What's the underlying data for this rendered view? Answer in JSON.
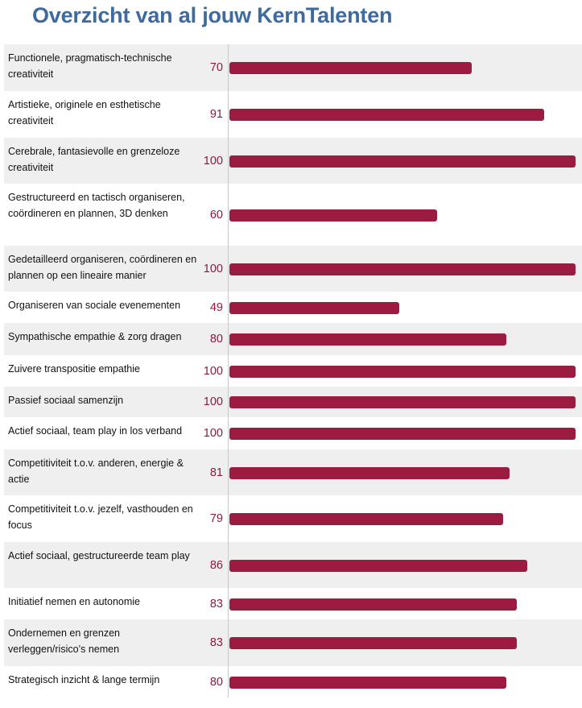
{
  "title": "Overzicht van al jouw KernTalenten",
  "colors": {
    "title": "#3f6a9e",
    "bar": "#9b1c40",
    "value": "#8b1a3e",
    "row_shade": "#efefef"
  },
  "chart_data": {
    "type": "bar",
    "orientation": "horizontal",
    "title": "Overzicht van al jouw KernTalenten",
    "xlabel": "",
    "ylabel": "",
    "xlim": [
      0,
      100
    ],
    "grid": false,
    "categories": [
      "Functionele, pragmatisch-technische creativiteit",
      "Artistieke, originele en esthetische creativiteit",
      "Cerebrale, fantasievolle en grenzeloze creativiteit",
      "Gestructureerd en tactisch organiseren, coördineren en plannen, 3D denken",
      "Gedetailleerd organiseren, coördineren en plannen op een lineaire manier",
      "Organiseren van sociale evenementen",
      "Sympathische empathie & zorg dragen",
      "Zuivere transpositie empathie",
      "Passief sociaal samenzijn",
      "Actief sociaal, team play in los verband",
      "Competitiviteit t.o.v. anderen, energie & actie",
      "Competitiviteit t.o.v. jezelf, vasthouden en focus",
      "Actief sociaal, gestructureerde team play",
      "Initiatief nemen en autonomie",
      "Ondernemen en grenzen verleggen/risico’s nemen",
      "Strategisch inzicht & lange termijn"
    ],
    "values": [
      70,
      91,
      100,
      60,
      100,
      49,
      80,
      100,
      100,
      100,
      81,
      79,
      86,
      83,
      83,
      80
    ]
  }
}
